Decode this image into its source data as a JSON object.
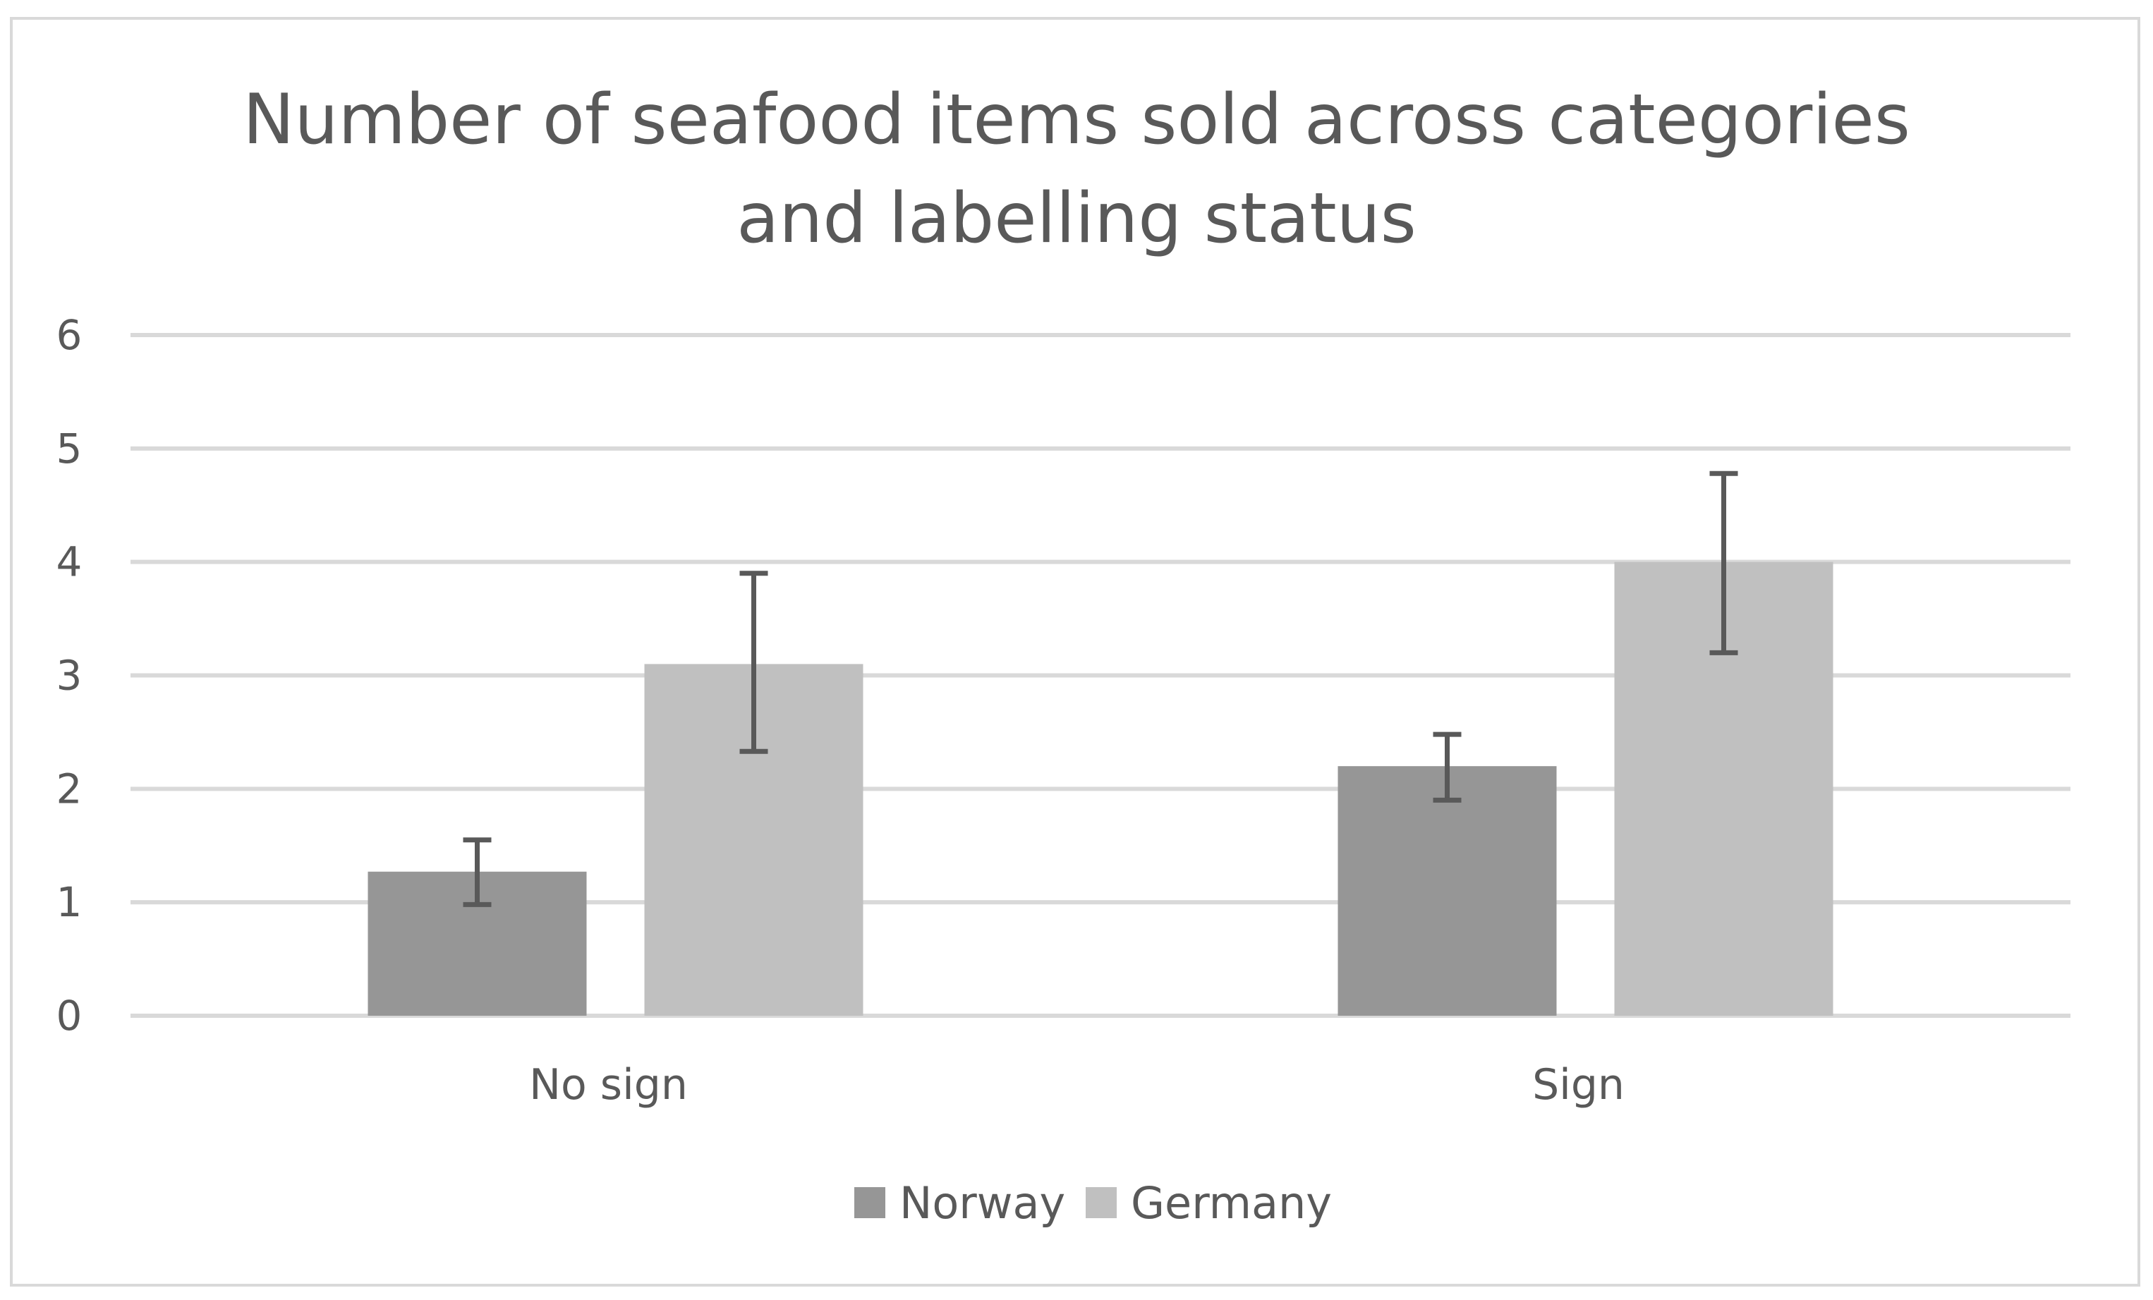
{
  "chart_data": {
    "type": "bar",
    "title": "Number of seafood items sold across categories\nand labelling status",
    "xlabel": "",
    "ylabel": "",
    "categories": [
      "No sign",
      "Sign"
    ],
    "series": [
      {
        "name": "Norway",
        "values": [
          1.27,
          2.2
        ],
        "error_low": [
          0.98,
          1.9
        ],
        "error_high": [
          1.55,
          2.48
        ],
        "color": "#969696"
      },
      {
        "name": "Germany",
        "values": [
          3.1,
          4.0
        ],
        "error_low": [
          2.33,
          3.2
        ],
        "error_high": [
          3.9,
          4.78
        ],
        "color": "#c0c0c0"
      }
    ],
    "ylim": [
      0,
      6
    ],
    "yticks": [
      0,
      1,
      2,
      3,
      4,
      5,
      6
    ],
    "grid": true,
    "legend": "bottom-center",
    "colors": {
      "grid": "#d9d9d9",
      "text": "#595959",
      "error_bar": "#595959",
      "frame": "#d9d9d9"
    }
  }
}
